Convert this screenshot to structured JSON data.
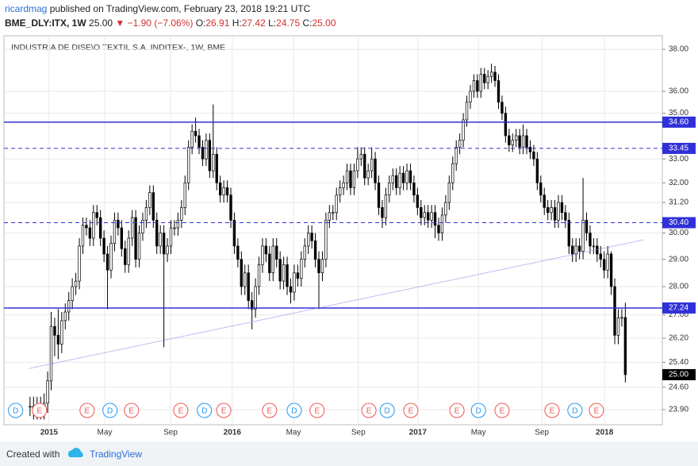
{
  "header": {
    "author": "ricardmag",
    "published": " published on TradingView.com, February 23, 2018 19:21 UTC",
    "symbol": "BME_DLY:ITX, 1W",
    "price": "25.00",
    "change": "▼ −1.90 (−7.06%)",
    "ohlc": [
      {
        "label": "O:",
        "value": "26.91"
      },
      {
        "label": "H:",
        "value": "27.42"
      },
      {
        "label": "L:",
        "value": "24.75"
      },
      {
        "label": "C:",
        "value": "25.00"
      }
    ]
  },
  "footer": {
    "created": "Created with",
    "brand": "TradingView"
  },
  "chart_data": {
    "type": "candlestick",
    "title": "INDUSTRIA DE DISE\\O TEXTIL S.A. INDITEX-, 1W, BME",
    "log_scale": true,
    "grid": true,
    "up_color": "#ffffff",
    "down_color": "#000000",
    "edge_color": "#000000",
    "ylim": [
      23.44,
      38.67
    ],
    "yticks": [
      {
        "value": 38,
        "label": "38.00"
      },
      {
        "value": 36,
        "label": "36.00"
      },
      {
        "value": 35,
        "label": "35.00"
      },
      {
        "value": 33,
        "label": "33.00"
      },
      {
        "value": 32,
        "label": "32.00"
      },
      {
        "value": 31.2,
        "label": "31.20"
      },
      {
        "value": 30,
        "label": "30.00"
      },
      {
        "value": 29,
        "label": "29.00"
      },
      {
        "value": 28,
        "label": "28.00"
      },
      {
        "value": 27,
        "label": "27.00"
      },
      {
        "value": 26.2,
        "label": "26.20"
      },
      {
        "value": 25.4,
        "label": "25.40"
      },
      {
        "value": 24.6,
        "label": "24.60"
      },
      {
        "value": 23.9,
        "label": "23.90"
      }
    ],
    "xlim": [
      -7.4,
      179.5
    ],
    "xticks": [
      {
        "value": 5.4,
        "label": "2015"
      },
      {
        "value": 21.2,
        "label": "May"
      },
      {
        "value": 39.9,
        "label": "Sep"
      },
      {
        "value": 57.4,
        "label": "2016"
      },
      {
        "value": 74.8,
        "label": "May"
      },
      {
        "value": 93.2,
        "label": "Sep"
      },
      {
        "value": 110.1,
        "label": "2017"
      },
      {
        "value": 127.3,
        "label": "May"
      },
      {
        "value": 145.3,
        "label": "Sep"
      },
      {
        "value": 163.1,
        "label": "2018"
      }
    ],
    "levels": [
      {
        "value": 34.6,
        "label": "34.60",
        "style": "solid",
        "color": "#3030d8"
      },
      {
        "value": 33.45,
        "label": "33.45",
        "style": "dashed",
        "color": "#3030d8"
      },
      {
        "value": 30.4,
        "label": "30.40",
        "style": "dashed",
        "color": "#3030d8"
      },
      {
        "value": 27.24,
        "label": "27.24",
        "style": "solid",
        "color": "#3030d8"
      }
    ],
    "last_price": {
      "value": 25,
      "label": "25.00"
    },
    "trendline": {
      "x": [
        -0.2,
        174.3
      ],
      "y": [
        25.2,
        29.74
      ],
      "color": "#7b7be8"
    },
    "events": [
      {
        "x": -4.1,
        "label": "D"
      },
      {
        "x": 2.7,
        "label": "E"
      },
      {
        "x": 16.2,
        "label": "E"
      },
      {
        "x": 22.7,
        "label": "D"
      },
      {
        "x": 28.8,
        "label": "E"
      },
      {
        "x": 42.8,
        "label": "E"
      },
      {
        "x": 49.5,
        "label": "D"
      },
      {
        "x": 55,
        "label": "E"
      },
      {
        "x": 68,
        "label": "E"
      },
      {
        "x": 75,
        "label": "D"
      },
      {
        "x": 81.5,
        "label": "E"
      },
      {
        "x": 96.2,
        "label": "E"
      },
      {
        "x": 101.4,
        "label": "D"
      },
      {
        "x": 108.1,
        "label": "E"
      },
      {
        "x": 121.2,
        "label": "E"
      },
      {
        "x": 127.3,
        "label": "D"
      },
      {
        "x": 134,
        "label": "E"
      },
      {
        "x": 148.2,
        "label": "E"
      },
      {
        "x": 154.7,
        "label": "D"
      },
      {
        "x": 160.8,
        "label": "E"
      }
    ],
    "event_colors": {
      "D": "#2196f3",
      "E": "#ef5350"
    },
    "open": [
      24.0,
      24.0,
      23.9,
      24.0,
      23.9,
      24.1,
      24.8,
      26.6,
      26.3,
      26.0,
      26.8,
      27.1,
      27.5,
      28.0,
      28.2,
      29.5,
      30.3,
      30.2,
      29.8,
      30.8,
      30.6,
      29.8,
      29.2,
      28.6,
      29.6,
      30.5,
      30.2,
      29.4,
      28.8,
      29.8,
      30.6,
      29.0,
      30.0,
      30.5,
      31.0,
      31.6,
      30.5,
      29.5,
      30.0,
      29.2,
      29.5,
      30.2,
      30.2,
      30.5,
      31.0,
      32.0,
      33.5,
      34.2,
      34.0,
      33.5,
      33.0,
      33.8,
      32.5,
      33.2,
      32.0,
      31.5,
      31.8,
      31.5,
      30.5,
      29.5,
      29.0,
      28.0,
      28.5,
      27.5,
      27.2,
      28.0,
      28.8,
      29.5,
      29.2,
      28.5,
      29.5,
      29.0,
      28.2,
      28.8,
      28.0,
      27.8,
      28.5,
      28.3,
      29.0,
      29.5,
      30.0,
      29.7,
      29.0,
      28.5,
      29.0,
      30.5,
      30.8,
      30.8,
      31.5,
      31.8,
      32.0,
      32.5,
      31.8,
      32.5,
      33.0,
      33.2,
      32.2,
      32.5,
      33.0,
      32.0,
      31.0,
      30.6,
      31.5,
      32.0,
      32.3,
      31.8,
      32.4,
      32.0,
      32.5,
      32.0,
      31.5,
      31.0,
      30.6,
      30.8,
      30.5,
      30.8,
      30.3,
      30.0,
      30.7,
      31.2,
      32.0,
      32.8,
      33.5,
      33.8,
      34.7,
      35.5,
      36.0,
      36.5,
      36.0,
      36.8,
      36.4,
      36.7,
      36.9,
      36.5,
      35.5,
      35.0,
      34.0,
      33.6,
      33.8,
      34.0,
      33.5,
      34.0,
      33.5,
      33.3,
      33.0,
      32.0,
      31.5,
      31.0,
      30.8,
      31.0,
      30.5,
      31.2,
      30.8,
      30.5,
      29.5,
      29.2,
      29.5,
      29.3,
      30.5,
      30.0,
      29.5,
      29.5,
      29.2,
      29.0,
      28.6,
      29.2,
      28.0,
      26.3,
      26.9,
      26.91
    ],
    "high": [
      24.3,
      24.3,
      24.3,
      24.3,
      24.4,
      25.1,
      27.1,
      26.9,
      27.2,
      27.1,
      27.4,
      27.8,
      28.3,
      28.5,
      29.8,
      30.6,
      30.6,
      30.5,
      31.1,
      31.1,
      30.9,
      30.1,
      29.5,
      29.9,
      30.8,
      30.8,
      30.5,
      29.7,
      30.1,
      30.9,
      30.9,
      30.3,
      30.8,
      31.3,
      31.9,
      31.9,
      30.8,
      30.3,
      30.3,
      29.8,
      30.5,
      30.5,
      30.8,
      31.3,
      32.3,
      33.8,
      34.5,
      34.8,
      34.3,
      33.8,
      34.1,
      34.1,
      35.4,
      33.5,
      32.3,
      32.1,
      32.1,
      31.8,
      30.8,
      29.8,
      29.3,
      28.8,
      28.8,
      27.8,
      28.3,
      29.1,
      29.8,
      29.8,
      29.5,
      29.8,
      29.8,
      29.3,
      29.1,
      29.1,
      28.3,
      28.8,
      28.8,
      29.3,
      29.8,
      30.3,
      30.3,
      30.0,
      29.3,
      29.3,
      30.8,
      31.1,
      31.1,
      31.8,
      32.1,
      32.3,
      32.8,
      32.8,
      32.8,
      33.5,
      33.5,
      33.5,
      32.8,
      33.5,
      33.3,
      32.3,
      31.3,
      31.8,
      32.3,
      32.6,
      32.6,
      32.7,
      32.7,
      32.8,
      32.8,
      32.3,
      31.8,
      31.3,
      31.1,
      31.1,
      31.1,
      31.1,
      30.6,
      31.0,
      31.5,
      32.3,
      33.1,
      33.8,
      34.1,
      35.0,
      35.8,
      36.3,
      36.8,
      36.8,
      37.1,
      37.1,
      37.0,
      37.3,
      37.2,
      36.8,
      35.8,
      35.3,
      34.3,
      34.1,
      34.3,
      34.3,
      34.5,
      34.3,
      33.8,
      33.6,
      33.3,
      32.3,
      31.8,
      31.3,
      31.3,
      31.3,
      31.5,
      31.5,
      31.1,
      30.8,
      29.8,
      29.8,
      29.8,
      32.2,
      30.8,
      30.3,
      29.8,
      29.8,
      29.5,
      29.3,
      29.5,
      29.3,
      28.3,
      27.2,
      27.2,
      27.42
    ],
    "low": [
      23.7,
      23.6,
      23.6,
      23.6,
      23.6,
      23.8,
      24.5,
      25.6,
      25.5,
      25.7,
      26.5,
      26.8,
      27.2,
      27.7,
      27.9,
      29.2,
      29.9,
      29.5,
      29.5,
      30.3,
      29.5,
      28.9,
      27.2,
      28.3,
      29.3,
      29.9,
      29.1,
      28.5,
      28.5,
      29.5,
      28.7,
      28.7,
      29.7,
      30.2,
      30.7,
      30.2,
      29.2,
      29.2,
      25.9,
      28.9,
      29.2,
      29.9,
      29.9,
      30.2,
      30.7,
      31.7,
      33.2,
      33.7,
      33.2,
      32.7,
      32.7,
      32.2,
      32.2,
      31.7,
      31.2,
      31.2,
      31.2,
      30.2,
      29.2,
      28.7,
      27.7,
      27.7,
      27.2,
      26.5,
      26.9,
      27.7,
      28.5,
      28.9,
      28.2,
      28.2,
      28.7,
      27.9,
      27.9,
      27.7,
      27.4,
      27.5,
      28.0,
      28.0,
      28.7,
      29.2,
      29.4,
      28.7,
      27.2,
      28.2,
      28.7,
      30.2,
      30.5,
      30.5,
      31.2,
      31.5,
      31.7,
      31.5,
      31.5,
      32.2,
      32.7,
      31.9,
      31.9,
      32.2,
      31.7,
      30.7,
      30.2,
      30.3,
      31.2,
      31.7,
      31.5,
      31.5,
      31.7,
      31.7,
      31.7,
      31.2,
      30.7,
      30.3,
      30.3,
      30.2,
      30.2,
      29.8,
      29.7,
      29.7,
      30.4,
      30.9,
      31.7,
      32.5,
      33.2,
      33.5,
      34.4,
      35.2,
      35.7,
      35.7,
      35.7,
      36.1,
      36.1,
      36.4,
      36.2,
      35.2,
      34.7,
      33.7,
      33.3,
      33.3,
      33.5,
      33.2,
      33.2,
      33.2,
      33.0,
      32.7,
      31.7,
      31.2,
      30.7,
      30.5,
      30.5,
      30.2,
      30.2,
      30.5,
      30.2,
      29.2,
      28.9,
      28.9,
      29.0,
      29.0,
      29.7,
      29.2,
      29.2,
      28.9,
      28.7,
      28.3,
      28.3,
      27.7,
      26.0,
      26.0,
      26.6,
      24.75
    ],
    "close": [
      24.0,
      23.9,
      24.0,
      23.9,
      24.1,
      24.8,
      26.6,
      26.3,
      26.0,
      26.8,
      27.1,
      27.5,
      28.0,
      28.2,
      29.5,
      30.3,
      30.2,
      29.8,
      30.8,
      30.6,
      29.8,
      29.2,
      28.6,
      29.6,
      30.5,
      30.2,
      29.4,
      28.8,
      29.8,
      30.6,
      29.0,
      30.0,
      30.5,
      31.0,
      31.6,
      30.5,
      29.5,
      30.0,
      29.2,
      29.5,
      30.2,
      30.2,
      30.5,
      31.0,
      32.0,
      33.5,
      34.2,
      34.0,
      33.5,
      33.0,
      33.8,
      32.5,
      33.2,
      32.0,
      31.5,
      31.8,
      31.5,
      30.5,
      29.5,
      29.0,
      28.0,
      28.5,
      27.5,
      27.2,
      28.0,
      28.8,
      29.5,
      29.2,
      28.5,
      29.5,
      29.0,
      28.2,
      28.8,
      28.0,
      27.8,
      28.5,
      28.3,
      29.0,
      29.5,
      30.0,
      29.7,
      29.0,
      28.5,
      29.0,
      30.5,
      30.8,
      30.8,
      31.5,
      31.8,
      32.0,
      32.5,
      31.8,
      32.5,
      33.0,
      33.2,
      32.2,
      32.5,
      33.0,
      32.0,
      31.0,
      30.6,
      31.5,
      32.0,
      32.3,
      31.8,
      32.4,
      32.0,
      32.5,
      32.0,
      31.5,
      31.0,
      30.6,
      30.8,
      30.5,
      30.8,
      30.3,
      30.0,
      30.7,
      31.2,
      32.0,
      32.8,
      33.5,
      33.8,
      34.7,
      35.5,
      36.0,
      36.5,
      36.0,
      36.8,
      36.4,
      36.7,
      36.9,
      36.5,
      35.5,
      35.0,
      34.0,
      33.6,
      33.8,
      34.0,
      33.5,
      34.0,
      33.5,
      33.3,
      33.0,
      32.0,
      31.5,
      31.0,
      30.8,
      31.0,
      30.5,
      31.2,
      30.8,
      30.5,
      29.5,
      29.2,
      29.5,
      29.3,
      30.5,
      30.0,
      29.5,
      29.5,
      29.2,
      29.0,
      28.6,
      29.2,
      28.0,
      26.3,
      26.9,
      26.91,
      25.0
    ]
  }
}
